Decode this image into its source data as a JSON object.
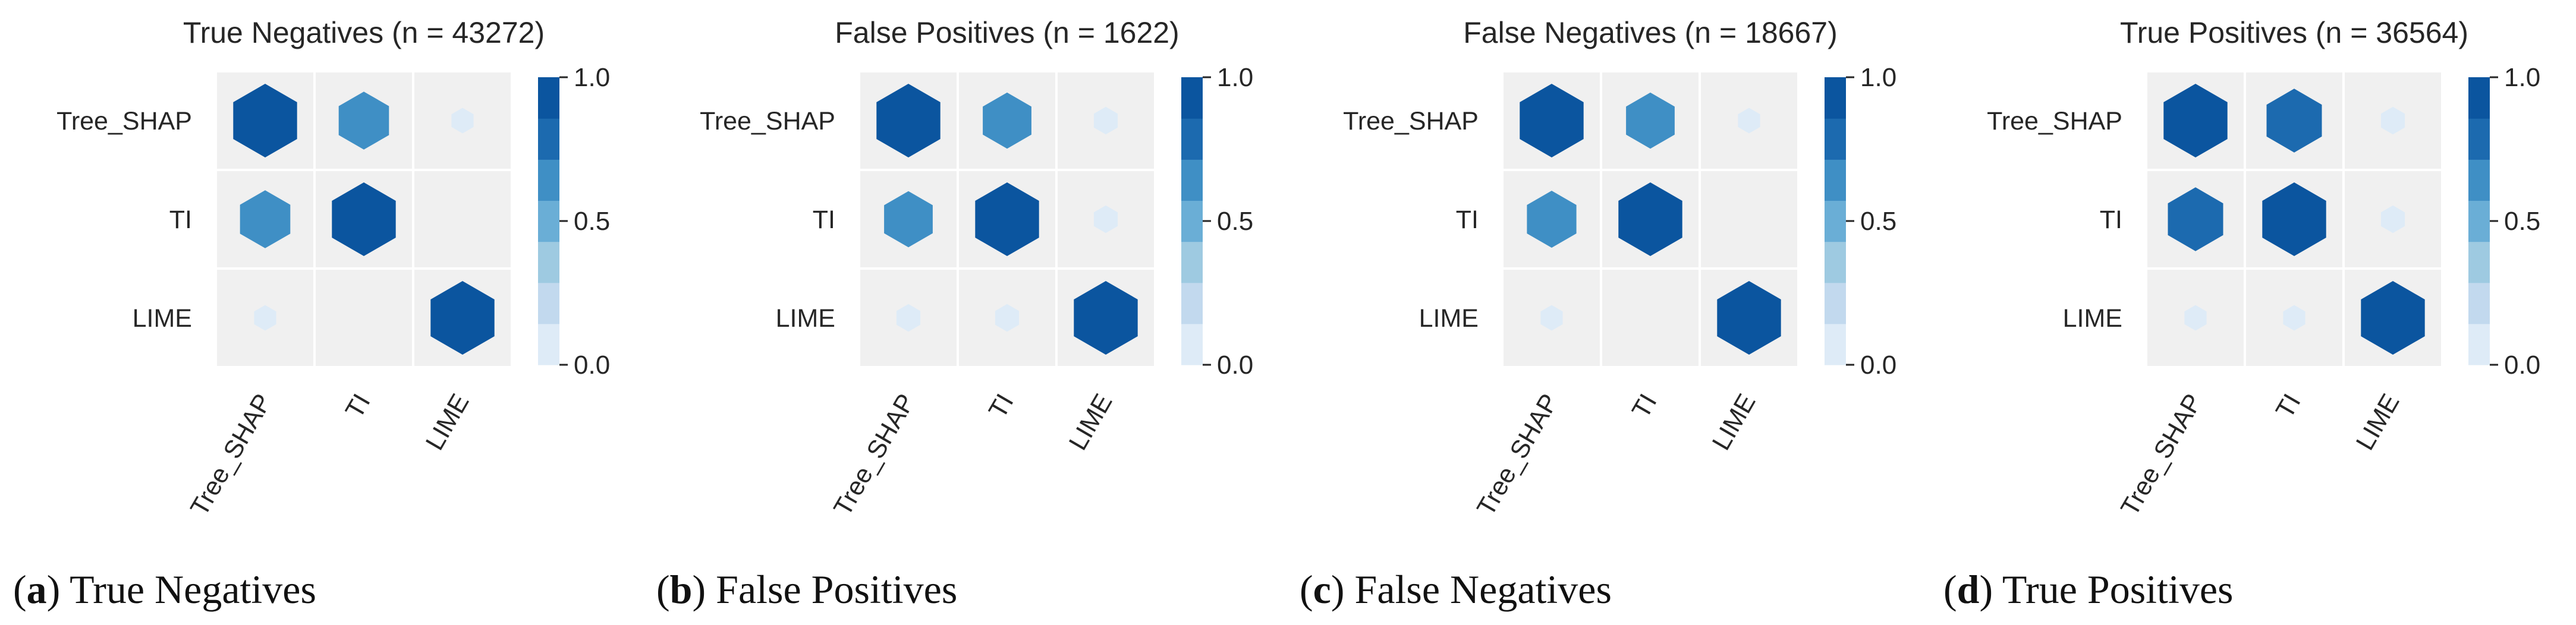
{
  "palette": [
    "#deebf7",
    "#c2d9ee",
    "#9ecae1",
    "#6aaed6",
    "#3f8fc5",
    "#1c6aaf",
    "#0b559f"
  ],
  "cell_background": "#f0f0f0",
  "chart_data": [
    {
      "type": "heatmap",
      "title": "True Negatives (n = 43272)",
      "caption_letter": "a",
      "caption_text": "True Negatives",
      "rows": [
        "Tree_SHAP",
        "TI",
        "LIME"
      ],
      "cols": [
        "Tree_SHAP",
        "TI",
        "LIME"
      ],
      "values": [
        [
          1.0,
          0.62,
          0.12
        ],
        [
          0.62,
          1.0,
          null
        ],
        [
          0.12,
          null,
          1.0
        ]
      ],
      "colorbar": {
        "min": 0.0,
        "max": 1.0,
        "ticks": [
          1.0,
          0.5,
          0.0
        ],
        "tick_labels": [
          "1.0",
          "0.5",
          "0.0"
        ]
      }
    },
    {
      "type": "heatmap",
      "title": "False Positives (n = 1622)",
      "caption_letter": "b",
      "caption_text": "False Positives",
      "rows": [
        "Tree_SHAP",
        "TI",
        "LIME"
      ],
      "cols": [
        "Tree_SHAP",
        "TI",
        "LIME"
      ],
      "values": [
        [
          1.0,
          0.58,
          0.14
        ],
        [
          0.58,
          1.0,
          0.14
        ],
        [
          0.14,
          0.14,
          1.0
        ]
      ],
      "colorbar": {
        "min": 0.0,
        "max": 1.0,
        "ticks": [
          1.0,
          0.5,
          0.0
        ],
        "tick_labels": [
          "1.0",
          "0.5",
          "0.0"
        ]
      }
    },
    {
      "type": "heatmap",
      "title": "False Negatives (n = 18667)",
      "caption_letter": "c",
      "caption_text": "False Negatives",
      "rows": [
        "Tree_SHAP",
        "TI",
        "LIME"
      ],
      "cols": [
        "Tree_SHAP",
        "TI",
        "LIME"
      ],
      "values": [
        [
          1.0,
          0.58,
          0.12
        ],
        [
          0.6,
          1.0,
          null
        ],
        [
          0.12,
          null,
          1.0
        ]
      ],
      "colorbar": {
        "min": 0.0,
        "max": 1.0,
        "ticks": [
          1.0,
          0.5,
          0.0
        ],
        "tick_labels": [
          "1.0",
          "0.5",
          "0.0"
        ]
      }
    },
    {
      "type": "heatmap",
      "title": "True Positives (n = 36564)",
      "caption_letter": "d",
      "caption_text": "True Positives",
      "rows": [
        "Tree_SHAP",
        "TI",
        "LIME"
      ],
      "cols": [
        "Tree_SHAP",
        "TI",
        "LIME"
      ],
      "values": [
        [
          1.0,
          0.75,
          0.14
        ],
        [
          0.75,
          1.0,
          0.14
        ],
        [
          0.12,
          0.12,
          1.0
        ]
      ],
      "colorbar": {
        "min": 0.0,
        "max": 1.0,
        "ticks": [
          1.0,
          0.5,
          0.0
        ],
        "tick_labels": [
          "1.0",
          "0.5",
          "0.0"
        ]
      }
    }
  ]
}
